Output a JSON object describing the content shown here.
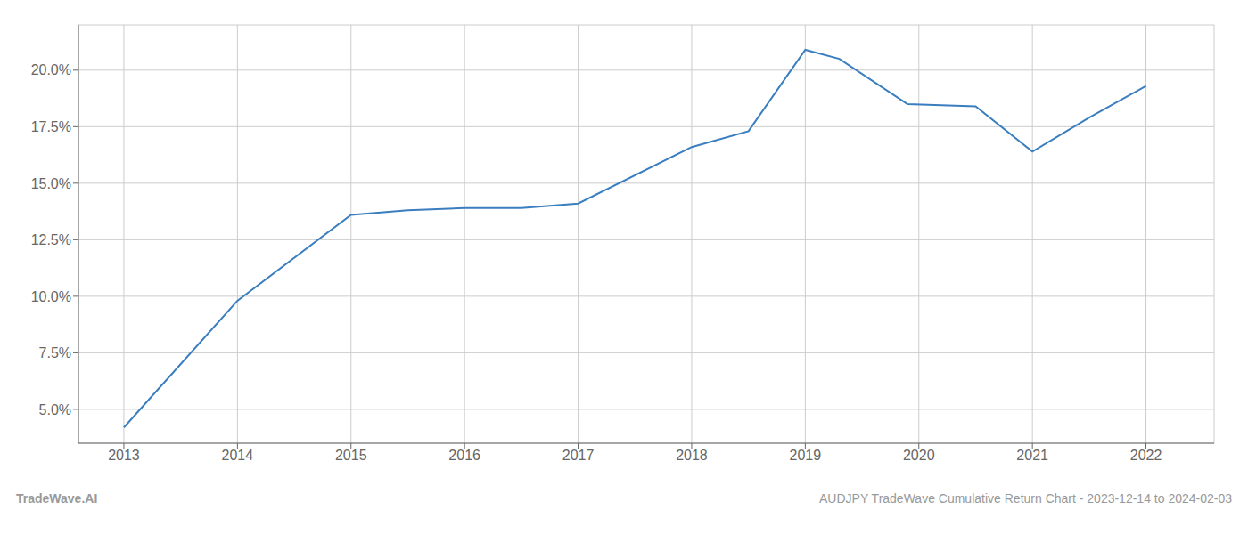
{
  "chart_data": {
    "type": "line",
    "x": [
      2013.0,
      2014.0,
      2015.0,
      2015.5,
      2016.0,
      2016.5,
      2017.0,
      2018.0,
      2018.5,
      2019.0,
      2019.3,
      2019.9,
      2020.5,
      2021.0,
      2021.5,
      2022.0
    ],
    "values": [
      4.2,
      9.8,
      13.6,
      13.8,
      13.9,
      13.9,
      14.1,
      16.6,
      17.3,
      20.9,
      20.5,
      18.5,
      18.4,
      16.4,
      17.9,
      19.3
    ],
    "color": "#3a7ebf",
    "xlim": [
      2012.6,
      2022.6
    ],
    "ylim": [
      3.5,
      22.0
    ],
    "xticks": [
      2013,
      2014,
      2015,
      2016,
      2017,
      2018,
      2019,
      2020,
      2021,
      2022
    ],
    "yticks": [
      {
        "value": 5.0,
        "label": "5.0%"
      },
      {
        "value": 7.5,
        "label": "7.5%"
      },
      {
        "value": 10.0,
        "label": "10.0%"
      },
      {
        "value": 12.5,
        "label": "12.5%"
      },
      {
        "value": 15.0,
        "label": "15.0%"
      },
      {
        "value": 17.5,
        "label": "17.5%"
      },
      {
        "value": 20.0,
        "label": "20.0%"
      }
    ],
    "grid": true,
    "annotations": [
      "TradeWave.AI",
      "AUDJPY TradeWave Cumulative Return Chart - 2023-12-14 to 2024-02-03"
    ]
  }
}
